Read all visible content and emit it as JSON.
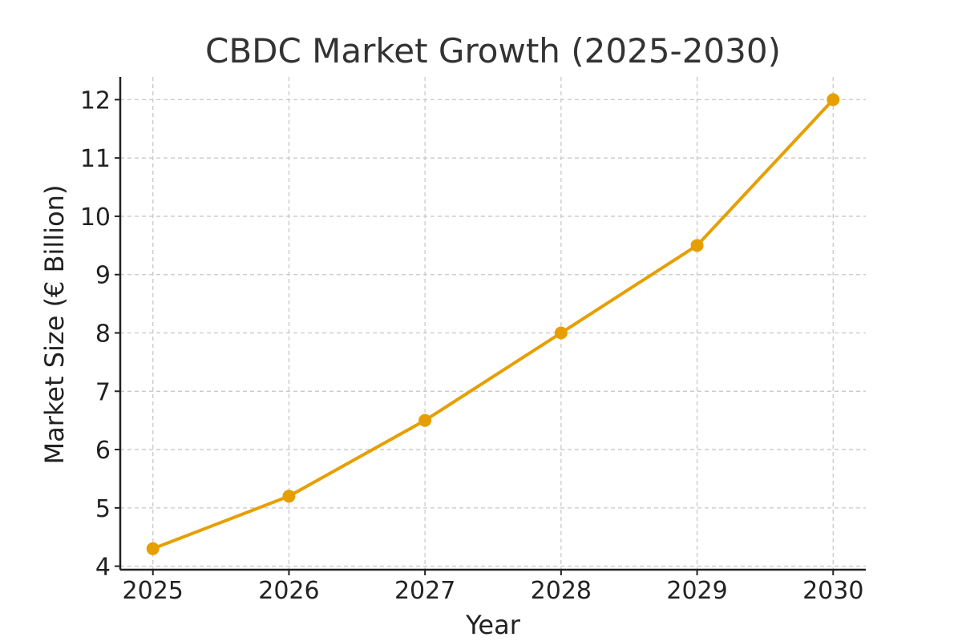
{
  "chart_data": {
    "type": "line",
    "title": "CBDC Market Growth (2025-2030)",
    "xlabel": "Year",
    "ylabel": "Market Size (€ Billion)",
    "x": [
      2025,
      2026,
      2027,
      2028,
      2029,
      2030
    ],
    "x_tick_labels": [
      "2025",
      "2026",
      "2027",
      "2028",
      "2029",
      "2030"
    ],
    "y_ticks": [
      4,
      5,
      6,
      7,
      8,
      9,
      10,
      11,
      12
    ],
    "y_tick_labels": [
      "4",
      "5",
      "6",
      "7",
      "8",
      "9",
      "10",
      "11",
      "12"
    ],
    "xlim": [
      2024.76,
      2030.24
    ],
    "ylim": [
      3.94,
      12.39
    ],
    "grid": true,
    "grid_style": "dashed",
    "series": [
      {
        "values": [
          4.3,
          5.2,
          6.5,
          8.0,
          9.5,
          12.0
        ],
        "color": "#E69F00",
        "marker": "circle"
      }
    ]
  }
}
